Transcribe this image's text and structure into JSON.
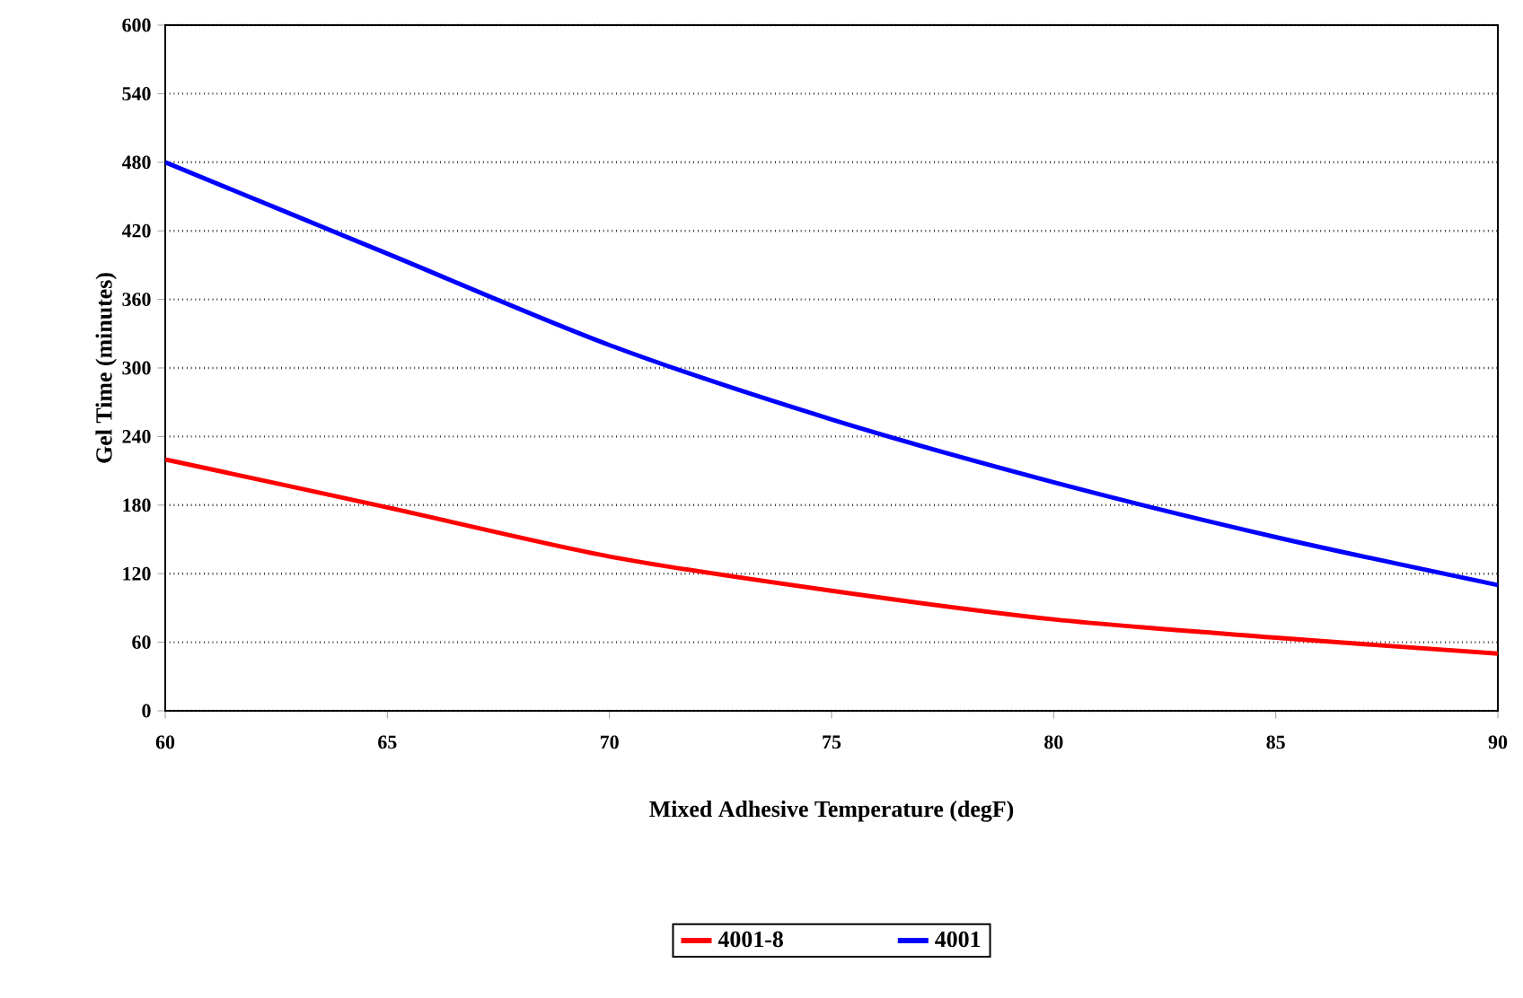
{
  "chart_data": {
    "type": "line",
    "xlabel": "Mixed Adhesive Temperature (degF)",
    "ylabel": "Gel Time (minutes)",
    "x": [
      60,
      65,
      70,
      75,
      80,
      85,
      90
    ],
    "series": [
      {
        "name": "4001-8",
        "color": "#ff0000",
        "values": [
          220,
          178,
          135,
          105,
          80,
          64,
          50
        ]
      },
      {
        "name": "4001",
        "color": "#0000ff",
        "values": [
          480,
          400,
          320,
          255,
          200,
          152,
          110
        ]
      }
    ],
    "xlim": [
      60,
      90
    ],
    "xticks": [
      60,
      65,
      70,
      75,
      80,
      85,
      90
    ],
    "ylim": [
      0,
      600
    ],
    "yticks": [
      0,
      60,
      120,
      180,
      240,
      300,
      360,
      420,
      480,
      540,
      600
    ],
    "grid": "y",
    "legend": "bottom",
    "marker": "none",
    "line_style": "solid"
  }
}
